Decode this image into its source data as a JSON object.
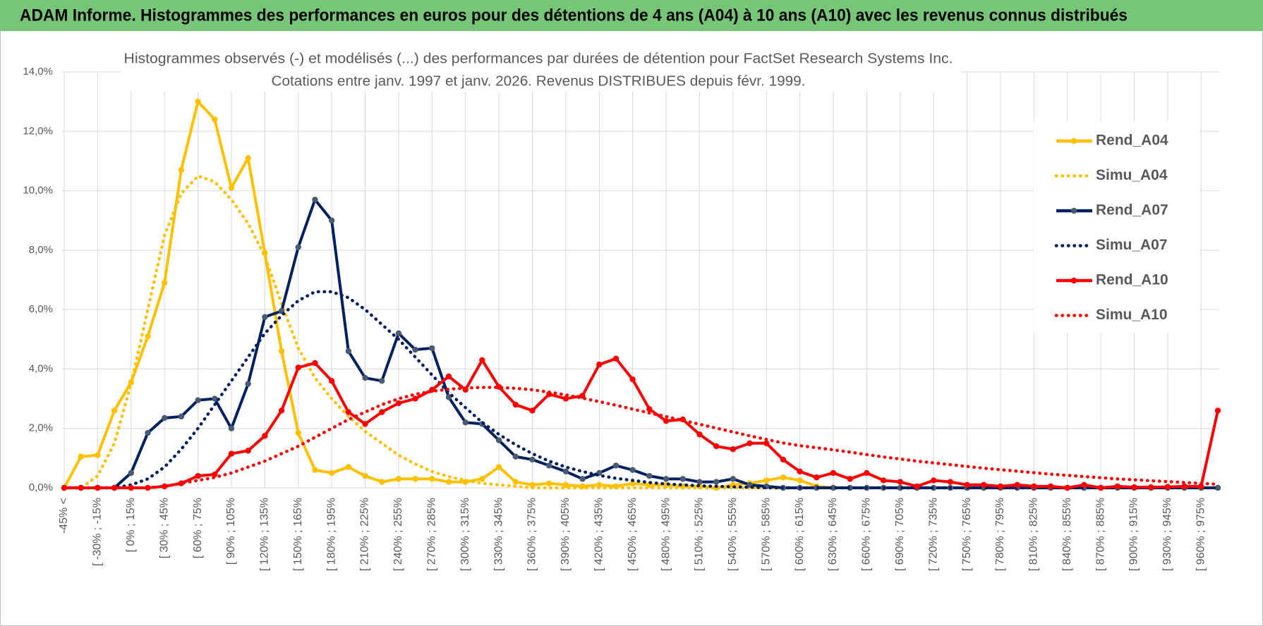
{
  "header": {
    "title": "ADAM Informe. Histogrammes des performances en euros pour des détentions de 4 ans (A04) à 10 ans (A10) avec les revenus connus distribués"
  },
  "chart_data": {
    "type": "line",
    "title": "Histogrammes observés (-) et modélisés (...) des performances par durées de détention pour FactSet Research Systems Inc.",
    "subtitle": "Cotations entre janv. 1997 et janv. 2026. Revenus DISTRIBUES depuis févr. 1999.",
    "categories": [
      "-45% <",
      null,
      "[ -30% ; -15%",
      null,
      "[ 0% ; 15%",
      null,
      "[ 30% ; 45%",
      null,
      "[ 60% ; 75%",
      null,
      "[ 90% ; 105%",
      null,
      "[ 120% ; 135%",
      null,
      "[ 150% ; 165%",
      null,
      "[ 180% ; 195%",
      null,
      "[ 210% ; 225%",
      null,
      "[ 240% ; 255%",
      null,
      "[ 270% ; 285%",
      null,
      "[ 300% ; 315%",
      null,
      "[ 330% ; 345%",
      null,
      "[ 360% ; 375%",
      null,
      "[ 390% ; 405%",
      null,
      "[ 420% ; 435%",
      null,
      "[ 450% ; 465%",
      null,
      "[ 480% ; 495%",
      null,
      "[ 510% ; 525%",
      null,
      "[ 540% ; 555%",
      null,
      "[ 570% ; 585%",
      null,
      "[ 600% ; 615%",
      null,
      "[ 630% ; 645%",
      null,
      "[ 660% ; 675%",
      null,
      "[ 690% ; 705%",
      null,
      "[ 720% ; 735%",
      null,
      "[ 750% ; 765%",
      null,
      "[ 780% ; 795%",
      null,
      "[ 810% ; 825%",
      null,
      "[ 840% ; 855%",
      null,
      "[ 870% ; 885%",
      null,
      "[ 900% ; 915%",
      null,
      "[ 930% ; 945%",
      null,
      "[ 960% ; 975%",
      null
    ],
    "series": [
      {
        "name": "Rend_A04",
        "color": "#ffc000",
        "style": "solid",
        "markers": true,
        "values": [
          0,
          1.05,
          1.1,
          2.6,
          3.55,
          5.1,
          6.9,
          10.7,
          13.0,
          12.4,
          10.1,
          11.1,
          7.9,
          4.6,
          1.85,
          0.6,
          0.5,
          0.7,
          0.4,
          0.2,
          0.3,
          0.3,
          0.3,
          0.2,
          0.2,
          0.3,
          0.7,
          0.2,
          0.1,
          0.15,
          0.1,
          0.05,
          0.1,
          0.05,
          0.15,
          0.1,
          0.1,
          0.05,
          0.05,
          0,
          0.1,
          0.15,
          0.25,
          0.35,
          0.25,
          0.05,
          0,
          0,
          0,
          0,
          0,
          0,
          0,
          0,
          0,
          0,
          0,
          0,
          0,
          0,
          0,
          0,
          0,
          0,
          0,
          0,
          0,
          0,
          0,
          0
        ]
      },
      {
        "name": "Simu_A04",
        "color": "#ffc000",
        "style": "dotted",
        "markers": false,
        "values": [
          0,
          0,
          0.4,
          1.5,
          3.5,
          6.0,
          8.5,
          9.9,
          10.5,
          10.3,
          9.7,
          8.9,
          7.8,
          6.2,
          4.7,
          3.7,
          3.0,
          2.4,
          1.9,
          1.5,
          1.1,
          0.8,
          0.55,
          0.38,
          0.25,
          0.15,
          0.1,
          0.05,
          0,
          0,
          0,
          0,
          0,
          0,
          0,
          0,
          0,
          0,
          0,
          0,
          0,
          0,
          0,
          0,
          0,
          0,
          0,
          0,
          0,
          0,
          0,
          0,
          0,
          0,
          0,
          0,
          0,
          0,
          0,
          0,
          0,
          0,
          0,
          0,
          0,
          0,
          0,
          0,
          0,
          0
        ]
      },
      {
        "name": "Rend_A07",
        "color": "#002060",
        "marker_color": "#4a5a70",
        "style": "solid",
        "markers": true,
        "values": [
          0,
          0,
          0,
          0,
          0.5,
          1.85,
          2.35,
          2.4,
          2.95,
          3.0,
          2.0,
          3.5,
          5.75,
          5.95,
          8.1,
          9.7,
          9.0,
          4.6,
          3.7,
          3.6,
          5.2,
          4.65,
          4.7,
          3.05,
          2.2,
          2.15,
          1.6,
          1.05,
          0.95,
          0.75,
          0.55,
          0.3,
          0.5,
          0.75,
          0.6,
          0.4,
          0.3,
          0.3,
          0.2,
          0.2,
          0.3,
          0.1,
          0.05,
          0,
          0,
          0,
          0,
          0,
          0,
          0,
          0,
          0,
          0,
          0,
          0,
          0,
          0,
          0,
          0,
          0,
          0,
          0,
          0,
          0,
          0,
          0,
          0,
          0,
          0,
          0
        ]
      },
      {
        "name": "Simu_A07",
        "color": "#002060",
        "style": "dotted",
        "markers": false,
        "values": [
          0,
          0,
          0,
          0,
          0.1,
          0.3,
          0.7,
          1.3,
          2.0,
          2.8,
          3.6,
          4.4,
          5.2,
          5.8,
          6.3,
          6.6,
          6.6,
          6.4,
          6.0,
          5.5,
          5.0,
          4.4,
          3.8,
          3.2,
          2.7,
          2.2,
          1.8,
          1.45,
          1.15,
          0.9,
          0.7,
          0.55,
          0.42,
          0.32,
          0.25,
          0.18,
          0.13,
          0.1,
          0.07,
          0.05,
          0.03,
          0.02,
          0,
          0,
          0,
          0,
          0,
          0,
          0,
          0,
          0,
          0,
          0,
          0,
          0,
          0,
          0,
          0,
          0,
          0,
          0,
          0,
          0,
          0,
          0,
          0,
          0,
          0,
          0,
          0
        ]
      },
      {
        "name": "Rend_A10",
        "color": "#ff0000",
        "style": "solid",
        "markers": true,
        "values": [
          0,
          0,
          0,
          0,
          0,
          0,
          0.05,
          0.15,
          0.4,
          0.45,
          1.15,
          1.25,
          1.75,
          2.6,
          4.05,
          4.2,
          3.6,
          2.55,
          2.15,
          2.55,
          2.85,
          3.0,
          3.3,
          3.75,
          3.3,
          4.3,
          3.4,
          2.8,
          2.6,
          3.15,
          3.0,
          3.1,
          4.15,
          4.35,
          3.65,
          2.65,
          2.25,
          2.3,
          1.8,
          1.4,
          1.3,
          1.5,
          1.5,
          0.95,
          0.55,
          0.35,
          0.5,
          0.3,
          0.5,
          0.25,
          0.2,
          0.05,
          0.25,
          0.2,
          0.1,
          0.1,
          0.05,
          0.1,
          0.05,
          0.05,
          0,
          0.1,
          0,
          0.05,
          0.02,
          0.02,
          0.03,
          0.05,
          0.05,
          2.6
        ]
      },
      {
        "name": "Simu_A10",
        "color": "#ff0000",
        "style": "dotted",
        "markers": false,
        "values": [
          0,
          0,
          0,
          0,
          0,
          0,
          0.05,
          0.15,
          0.25,
          0.35,
          0.5,
          0.7,
          0.9,
          1.15,
          1.4,
          1.7,
          2.0,
          2.3,
          2.55,
          2.8,
          3.0,
          3.15,
          3.25,
          3.32,
          3.36,
          3.38,
          3.38,
          3.35,
          3.3,
          3.22,
          3.13,
          3.02,
          2.9,
          2.78,
          2.65,
          2.52,
          2.4,
          2.27,
          2.14,
          2.01,
          1.88,
          1.75,
          1.63,
          1.51,
          1.42,
          1.35,
          1.28,
          1.2,
          1.12,
          1.04,
          0.97,
          0.9,
          0.84,
          0.78,
          0.72,
          0.66,
          0.61,
          0.56,
          0.51,
          0.46,
          0.42,
          0.38,
          0.34,
          0.3,
          0.27,
          0.24,
          0.21,
          0.18,
          0.15,
          0.12
        ]
      }
    ],
    "ylim": [
      0,
      14
    ],
    "yticks": [
      {
        "value": 0,
        "label": "0,0%"
      },
      {
        "value": 2,
        "label": "2,0%"
      },
      {
        "value": 4,
        "label": "4,0%"
      },
      {
        "value": 6,
        "label": "6,0%"
      },
      {
        "value": 8,
        "label": "8,0%"
      },
      {
        "value": 10,
        "label": "10,0%"
      },
      {
        "value": 12,
        "label": "12,0%"
      },
      {
        "value": 14,
        "label": "14,0%"
      }
    ],
    "grid": true,
    "legend": "right"
  }
}
